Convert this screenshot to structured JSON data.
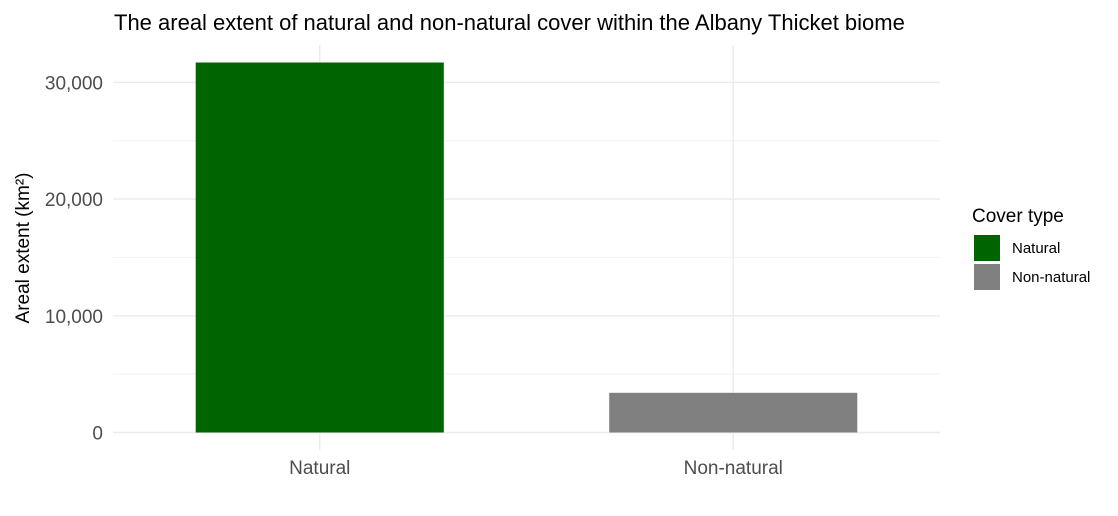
{
  "chart_data": {
    "type": "bar",
    "title": "The areal extent of natural and non-natural cover within the Albany Thicket biome",
    "xlabel": "",
    "ylabel": "Areal extent (km²)",
    "categories": [
      "Natural",
      "Non-natural"
    ],
    "values": [
      31700,
      3400
    ],
    "colors": [
      "#006400",
      "#808080"
    ],
    "ylim": [
      -1500,
      33200
    ],
    "yticks": [
      0,
      10000,
      20000,
      30000
    ],
    "ytick_labels": [
      "0",
      "10,000",
      "20,000",
      "30,000"
    ],
    "grid": true,
    "legend": {
      "title": "Cover type",
      "position": "right",
      "entries": [
        {
          "label": "Natural",
          "color": "#006400"
        },
        {
          "label": "Non-natural",
          "color": "#808080"
        }
      ]
    }
  }
}
